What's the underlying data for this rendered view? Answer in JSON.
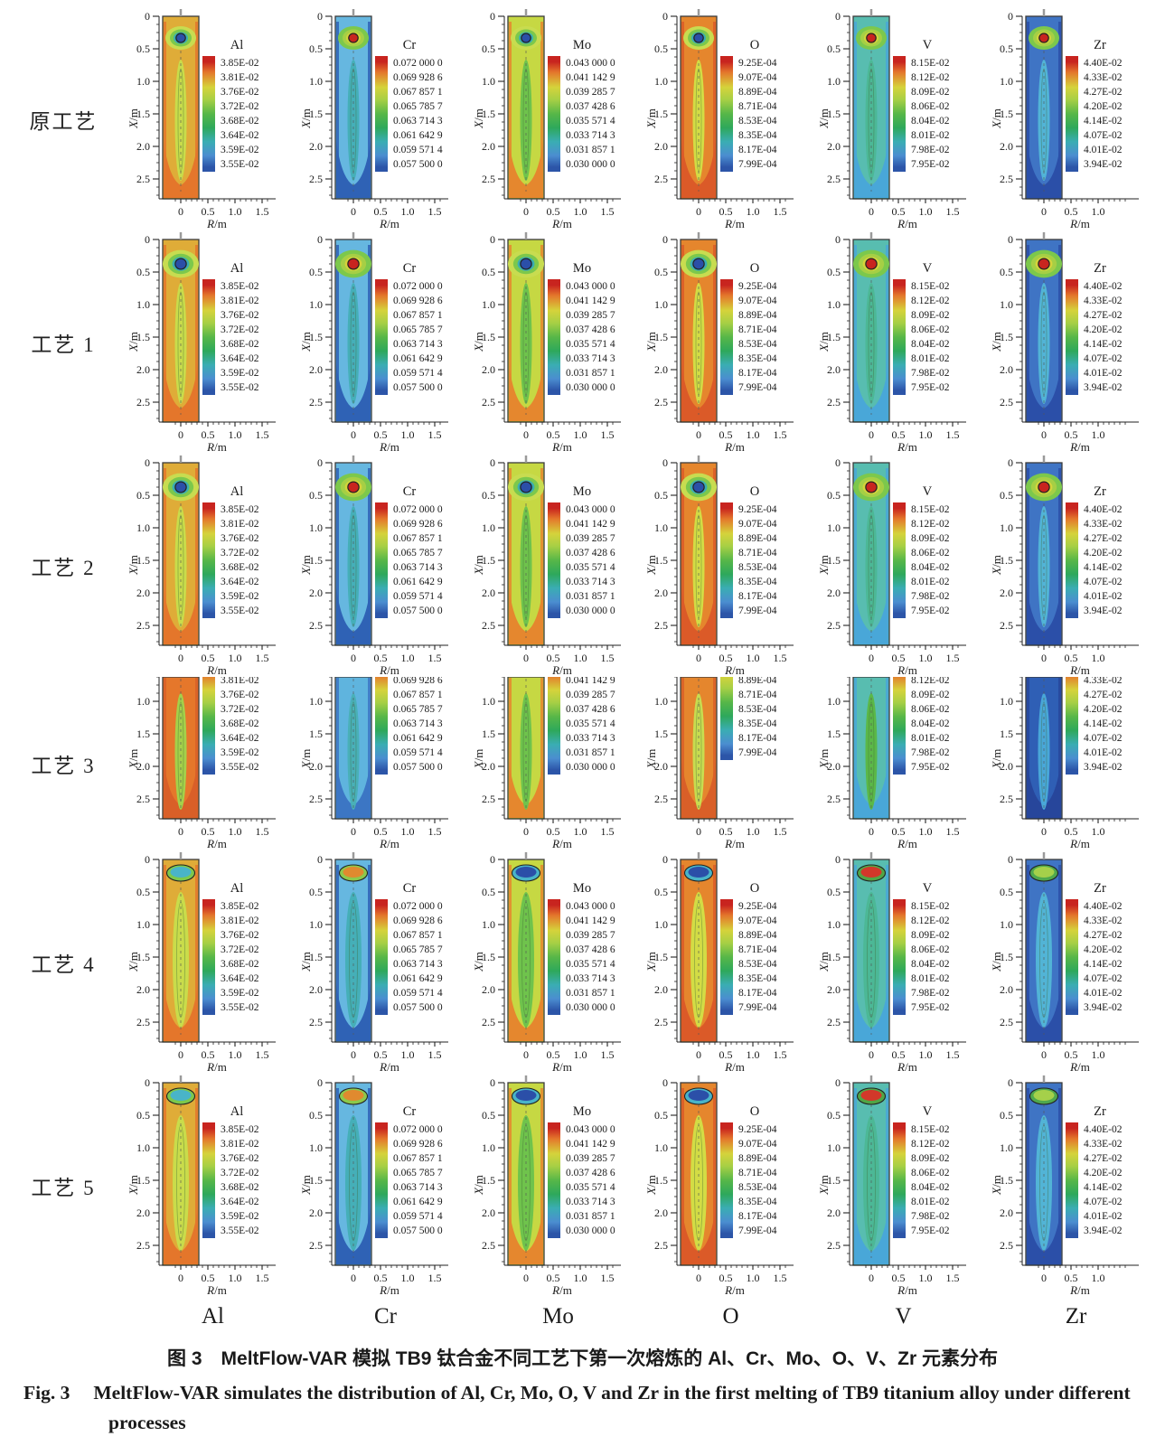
{
  "columns": [
    "Al",
    "Cr",
    "Mo",
    "O",
    "V",
    "Zr"
  ],
  "rows": [
    {
      "label": "原工艺",
      "clipped": false
    },
    {
      "label": "工艺 1",
      "clipped": false
    },
    {
      "label": "工艺 2",
      "clipped": false
    },
    {
      "label": "工艺 3",
      "clipped": true
    },
    {
      "label": "工艺 4",
      "clipped": false
    },
    {
      "label": "工艺 5",
      "clipped": false
    }
  ],
  "axes": {
    "ylabel": "X/m",
    "xlabel": "R/m",
    "yticks": [
      "0",
      "0.5",
      "1.0",
      "1.5",
      "2.0",
      "2.5"
    ],
    "yticks_clipped": [
      "1.0",
      "1.5",
      "2.0",
      "2.5"
    ],
    "xticks": [
      "0",
      "0.5",
      "1.0",
      "1.5"
    ],
    "xticks_zr": [
      "0",
      "0.5",
      "1.0"
    ]
  },
  "legends": {
    "Al": {
      "title": "Al",
      "values": [
        "3.85E-02",
        "3.81E-02",
        "3.76E-02",
        "3.72E-02",
        "3.68E-02",
        "3.64E-02",
        "3.59E-02",
        "3.55E-02"
      ]
    },
    "Cr": {
      "title": "Cr",
      "values": [
        "0.072 000 0",
        "0.069 928 6",
        "0.067 857 1",
        "0.065 785 7",
        "0.063 714 3",
        "0.061 642 9",
        "0.059 571 4",
        "0.057 500 0"
      ]
    },
    "Mo": {
      "title": "Mo",
      "values": [
        "0.043 000 0",
        "0.041 142 9",
        "0.039 285 7",
        "0.037 428 6",
        "0.035 571 4",
        "0.033 714 3",
        "0.031 857 1",
        "0.030 000 0"
      ]
    },
    "O": {
      "title": "O",
      "values": [
        "9.25E-04",
        "9.07E-04",
        "8.89E-04",
        "8.71E-04",
        "8.53E-04",
        "8.35E-04",
        "8.17E-04",
        "7.99E-04"
      ]
    },
    "V": {
      "title": "V",
      "values": [
        "8.15E-02",
        "8.12E-02",
        "8.09E-02",
        "8.06E-02",
        "8.04E-02",
        "8.01E-02",
        "7.98E-02",
        "7.95E-02"
      ]
    },
    "Zr": {
      "title": "Zr",
      "values": [
        "4.40E-02",
        "4.33E-02",
        "4.27E-02",
        "4.20E-02",
        "4.14E-02",
        "4.07E-02",
        "4.01E-02",
        "3.94E-02"
      ]
    }
  },
  "colorbar_colors": [
    "#C8241F",
    "#E4762B",
    "#D5D33B",
    "#A6CF45",
    "#57B748",
    "#2EA85B",
    "#3AADB3",
    "#4B8ED0",
    "#2C55A8"
  ],
  "plot_styles": {
    "Al": {
      "body": "#DFAC38",
      "outer": "#E4762B",
      "column": "#C9DC4B",
      "deep_core": "#2B4FA8",
      "lens_ring": "#7CC84C",
      "lens_core": "#49B4C8",
      "row3": {
        "body": "#E5772B",
        "outer": "#D95F28",
        "column": "#A5D04A"
      }
    },
    "Cr": {
      "body": "#66B7E0",
      "outer": "#2F62B5",
      "column": "#45AFB8",
      "deep_core": "#C8241F",
      "lens_ring": "#8CC94C",
      "lens_core": "#E08A2F",
      "row3": {
        "body": "#5FB4DE",
        "outer": "#3C76C4",
        "column": "#49B0B8"
      }
    },
    "Mo": {
      "body": "#C6D843",
      "outer": "#E5872E",
      "column": "#6FC34C",
      "deep_core": "#2B4FA8",
      "lens_ring": "#49B4C8",
      "lens_core": "#2B4FA8",
      "row3": {
        "body": "#C6D843",
        "outer": "#E5872E",
        "column": "#6FC34C"
      }
    },
    "O": {
      "body": "#E5862D",
      "outer": "#DB5A28",
      "column": "#D3DC45",
      "deep_core": "#2B4FA8",
      "lens_ring": "#49B4C8",
      "lens_core": "#2B4FA8",
      "row3": {
        "body": "#E5862D",
        "outer": "#D95F28",
        "column": "#C8DC50"
      }
    },
    "V": {
      "body": "#58BDB0",
      "outer": "#49A7D8",
      "column": "#4CB896",
      "deep_core": "#C8241F",
      "lens_ring": "#50A545",
      "lens_core": "#D2382A",
      "row3": {
        "body": "#58BDB0",
        "outer": "#49A7D8",
        "column": "#5BB848"
      }
    },
    "Zr": {
      "body": "#3F74C4",
      "outer": "#2B4FA8",
      "column": "#52B4D6",
      "deep_core": "#C8241F",
      "lens_ring": "#4FA84E",
      "lens_core": "#A5D04A",
      "row3": {
        "body": "#2F5FB5",
        "outer": "#27469B",
        "column": "#49A7D8"
      }
    }
  },
  "caption": {
    "zh": "图 3　MeltFlow-VAR 模拟 TB9 钛合金不同工艺下第一次熔炼的 Al、Cr、Mo、O、V、Zr 元素分布",
    "en_label": "Fig. 3",
    "en_text": "MeltFlow-VAR simulates the distribution of Al, Cr, Mo, O, V and Zr in the first melting of TB9 titanium alloy under different processes"
  },
  "chart_data": [
    {
      "type": "heatmap",
      "element": "Al",
      "title": "Al",
      "xlabel": "R/m",
      "ylabel": "X/m",
      "xticks": [
        0,
        0.5,
        1.0,
        1.5
      ],
      "yticks": [
        0,
        0.5,
        1.0,
        1.5,
        2.0,
        2.5
      ],
      "contour_levels": [
        0.0385,
        0.0381,
        0.0376,
        0.0372,
        0.0368,
        0.0364,
        0.0359,
        0.0355
      ],
      "processes": [
        "原工艺",
        "工艺 1",
        "工艺 2",
        "工艺 3",
        "工艺 4",
        "工艺 5"
      ]
    },
    {
      "type": "heatmap",
      "element": "Cr",
      "title": "Cr",
      "xlabel": "R/m",
      "ylabel": "X/m",
      "xticks": [
        0,
        0.5,
        1.0,
        1.5
      ],
      "yticks": [
        0,
        0.5,
        1.0,
        1.5,
        2.0,
        2.5
      ],
      "contour_levels": [
        0.072,
        0.0699286,
        0.0678571,
        0.0657857,
        0.0637143,
        0.0616429,
        0.0595714,
        0.0575
      ],
      "processes": [
        "原工艺",
        "工艺 1",
        "工艺 2",
        "工艺 3",
        "工艺 4",
        "工艺 5"
      ]
    },
    {
      "type": "heatmap",
      "element": "Mo",
      "title": "Mo",
      "xlabel": "R/m",
      "ylabel": "X/m",
      "xticks": [
        0,
        0.5,
        1.0,
        1.5
      ],
      "yticks": [
        0,
        0.5,
        1.0,
        1.5,
        2.0,
        2.5
      ],
      "contour_levels": [
        0.043,
        0.0411429,
        0.0392857,
        0.0374286,
        0.0355714,
        0.0337143,
        0.0318571,
        0.03
      ],
      "processes": [
        "原工艺",
        "工艺 1",
        "工艺 2",
        "工艺 3",
        "工艺 4",
        "工艺 5"
      ]
    },
    {
      "type": "heatmap",
      "element": "O",
      "title": "O",
      "xlabel": "R/m",
      "ylabel": "X/m",
      "xticks": [
        0,
        0.5,
        1.0,
        1.5
      ],
      "yticks": [
        0,
        0.5,
        1.0,
        1.5,
        2.0,
        2.5
      ],
      "contour_levels": [
        0.000925,
        0.000907,
        0.000889,
        0.000871,
        0.000853,
        0.000835,
        0.000817,
        0.000799
      ],
      "processes": [
        "原工艺",
        "工艺 1",
        "工艺 2",
        "工艺 3",
        "工艺 4",
        "工艺 5"
      ]
    },
    {
      "type": "heatmap",
      "element": "V",
      "title": "V",
      "xlabel": "R/m",
      "ylabel": "X/m",
      "xticks": [
        0,
        0.5,
        1.0,
        1.5
      ],
      "yticks": [
        0,
        0.5,
        1.0,
        1.5,
        2.0,
        2.5
      ],
      "contour_levels": [
        0.0815,
        0.0812,
        0.0809,
        0.0806,
        0.0804,
        0.0801,
        0.0798,
        0.0795
      ],
      "processes": [
        "原工艺",
        "工艺 1",
        "工艺 2",
        "工艺 3",
        "工艺 4",
        "工艺 5"
      ]
    },
    {
      "type": "heatmap",
      "element": "Zr",
      "title": "Zr",
      "xlabel": "R/m",
      "ylabel": "X/m",
      "xticks": [
        0,
        0.5,
        1.0
      ],
      "yticks": [
        0,
        0.5,
        1.0,
        1.5,
        2.0,
        2.5
      ],
      "contour_levels": [
        0.044,
        0.0433,
        0.0427,
        0.042,
        0.0414,
        0.0407,
        0.0401,
        0.0394
      ],
      "processes": [
        "原工艺",
        "工艺 1",
        "工艺 2",
        "工艺 3",
        "工艺 4",
        "工艺 5"
      ]
    }
  ]
}
